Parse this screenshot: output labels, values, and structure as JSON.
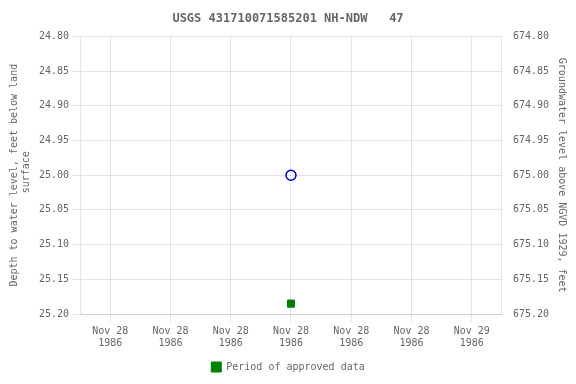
{
  "chart_data": {
    "type": "scatter",
    "title": "USGS 431710071585201 NH-NDW   47",
    "y_label": "Depth to water level, feet below land\n surface",
    "y2_label": "Groundwater level above NGVD 1929, feet",
    "categories": [
      "Nov 28\n1986",
      "Nov 28\n1986",
      "Nov 28\n1986",
      "Nov 28\n1986",
      "Nov 28\n1986",
      "Nov 28\n1986",
      "Nov 29\n1986"
    ],
    "series": [
      {
        "color": "#0000cc",
        "marker": "open_circle",
        "values": [
          null,
          null,
          null,
          25.0,
          null,
          null,
          null
        ]
      },
      {
        "name": "Period of approved data",
        "color": "#008000",
        "marker": "square",
        "values": [
          null,
          null,
          null,
          25.185,
          null,
          null,
          null
        ]
      }
    ],
    "ylim": [
      25.2,
      24.8
    ],
    "yticks": [
      {
        "value": 24.8,
        "label": "24.80"
      },
      24.85,
      {
        "value": 24.9,
        "label": "24.90"
      },
      24.95,
      {
        "value": 25.0,
        "label": "25.00"
      },
      25.05,
      {
        "value": 25.1,
        "label": "25.10"
      },
      25.15,
      {
        "value": 25.2,
        "label": "25.20"
      }
    ],
    "y2lim": [
      675.2,
      674.8
    ],
    "y2ticks": [
      {
        "value": 675.2,
        "label": "675.20"
      },
      675.15,
      {
        "value": 675.1,
        "label": "675.10"
      },
      675.05,
      {
        "value": 675.0,
        "label": "675.00"
      },
      674.95,
      {
        "value": 674.9,
        "label": "674.90"
      },
      674.85,
      {
        "value": 674.8,
        "label": "674.80"
      }
    ],
    "grid": true,
    "legend": "bottom"
  }
}
